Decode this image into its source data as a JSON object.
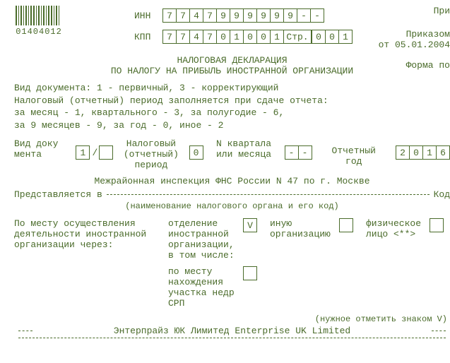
{
  "barcode_number": "01404012",
  "inn_label": "ИНН",
  "inn_cells": [
    "7",
    "7",
    "4",
    "7",
    "9",
    "9",
    "9",
    "9",
    "9",
    "9",
    "-",
    "-"
  ],
  "kpp_label": "КПП",
  "kpp_cells": [
    "7",
    "7",
    "4",
    "7",
    "0",
    "1",
    "0",
    "0",
    "1"
  ],
  "page_label": "Стр.",
  "page_cells": [
    "0",
    "0",
    "1"
  ],
  "right_note1": "При",
  "right_note2": "Приказом",
  "right_note3": "от 05.01.2004",
  "right_note4": "Форма по",
  "title1": "НАЛОГОВАЯ ДЕКЛАРАЦИЯ",
  "title2": "ПО НАЛОГУ НА ПРИБЫЛЬ ИНОСТРАННОЙ ОРГАНИЗАЦИИ",
  "instr1": "Вид документа: 1 - первичный, 3 - корректирующий",
  "instr2": "Налоговый (отчетный) период заполняется при сдаче отчета:",
  "instr3": "за месяц - 1, квартального - 3, за полугодие - 6,",
  "instr4": "за 9 месяцев - 9, за год - 0, иное - 2",
  "doc_kind_label_a": "Вид доку",
  "doc_kind_label_b": "мента",
  "doc_kind_main": "1",
  "doc_kind_sep": "/",
  "doc_kind_extra": "",
  "tax_period_label_a": "Налоговый",
  "tax_period_label_b": "(отчетный)",
  "tax_period_label_c": "период",
  "tax_period_val": "0",
  "quarter_label_a": "N квартала",
  "quarter_label_b": "или месяца",
  "quarter_cells": [
    "-",
    "-"
  ],
  "year_label": "Отчетный год",
  "year_cells": [
    "2",
    "0",
    "1",
    "6"
  ],
  "tax_office": "Межрайонная инспекция ФНС России N 47 по г. Москве",
  "presented_label": "Представляется в",
  "code_label": "Код",
  "tax_office_hint": "(наименование налогового органа и его код)",
  "loc_left_a": "По месту осуществления",
  "loc_left_b": "деятельности иностранной",
  "loc_left_c": "организации через:",
  "loc_opt1_a": "отделение",
  "loc_opt1_b": "иностранной",
  "loc_opt1_c": "организации,",
  "loc_opt1_d": "в том числе:",
  "loc_opt1_check": "V",
  "loc_opt2_a": "иную",
  "loc_opt2_b": "организацию",
  "loc_opt2_check": "",
  "loc_opt3_a": "физическое",
  "loc_opt3_b": "лицо <**>",
  "loc_opt3_check": "",
  "loc_sub_a": "по месту",
  "loc_sub_b": "нахождения",
  "loc_sub_c": "участка недр",
  "loc_sub_d": "СРП",
  "loc_sub_check": "",
  "mark_hint": "(нужное отметить знаком V)",
  "org_name": "Энтерпрайз ЮК Лимитед Enterprise UK Limited"
}
